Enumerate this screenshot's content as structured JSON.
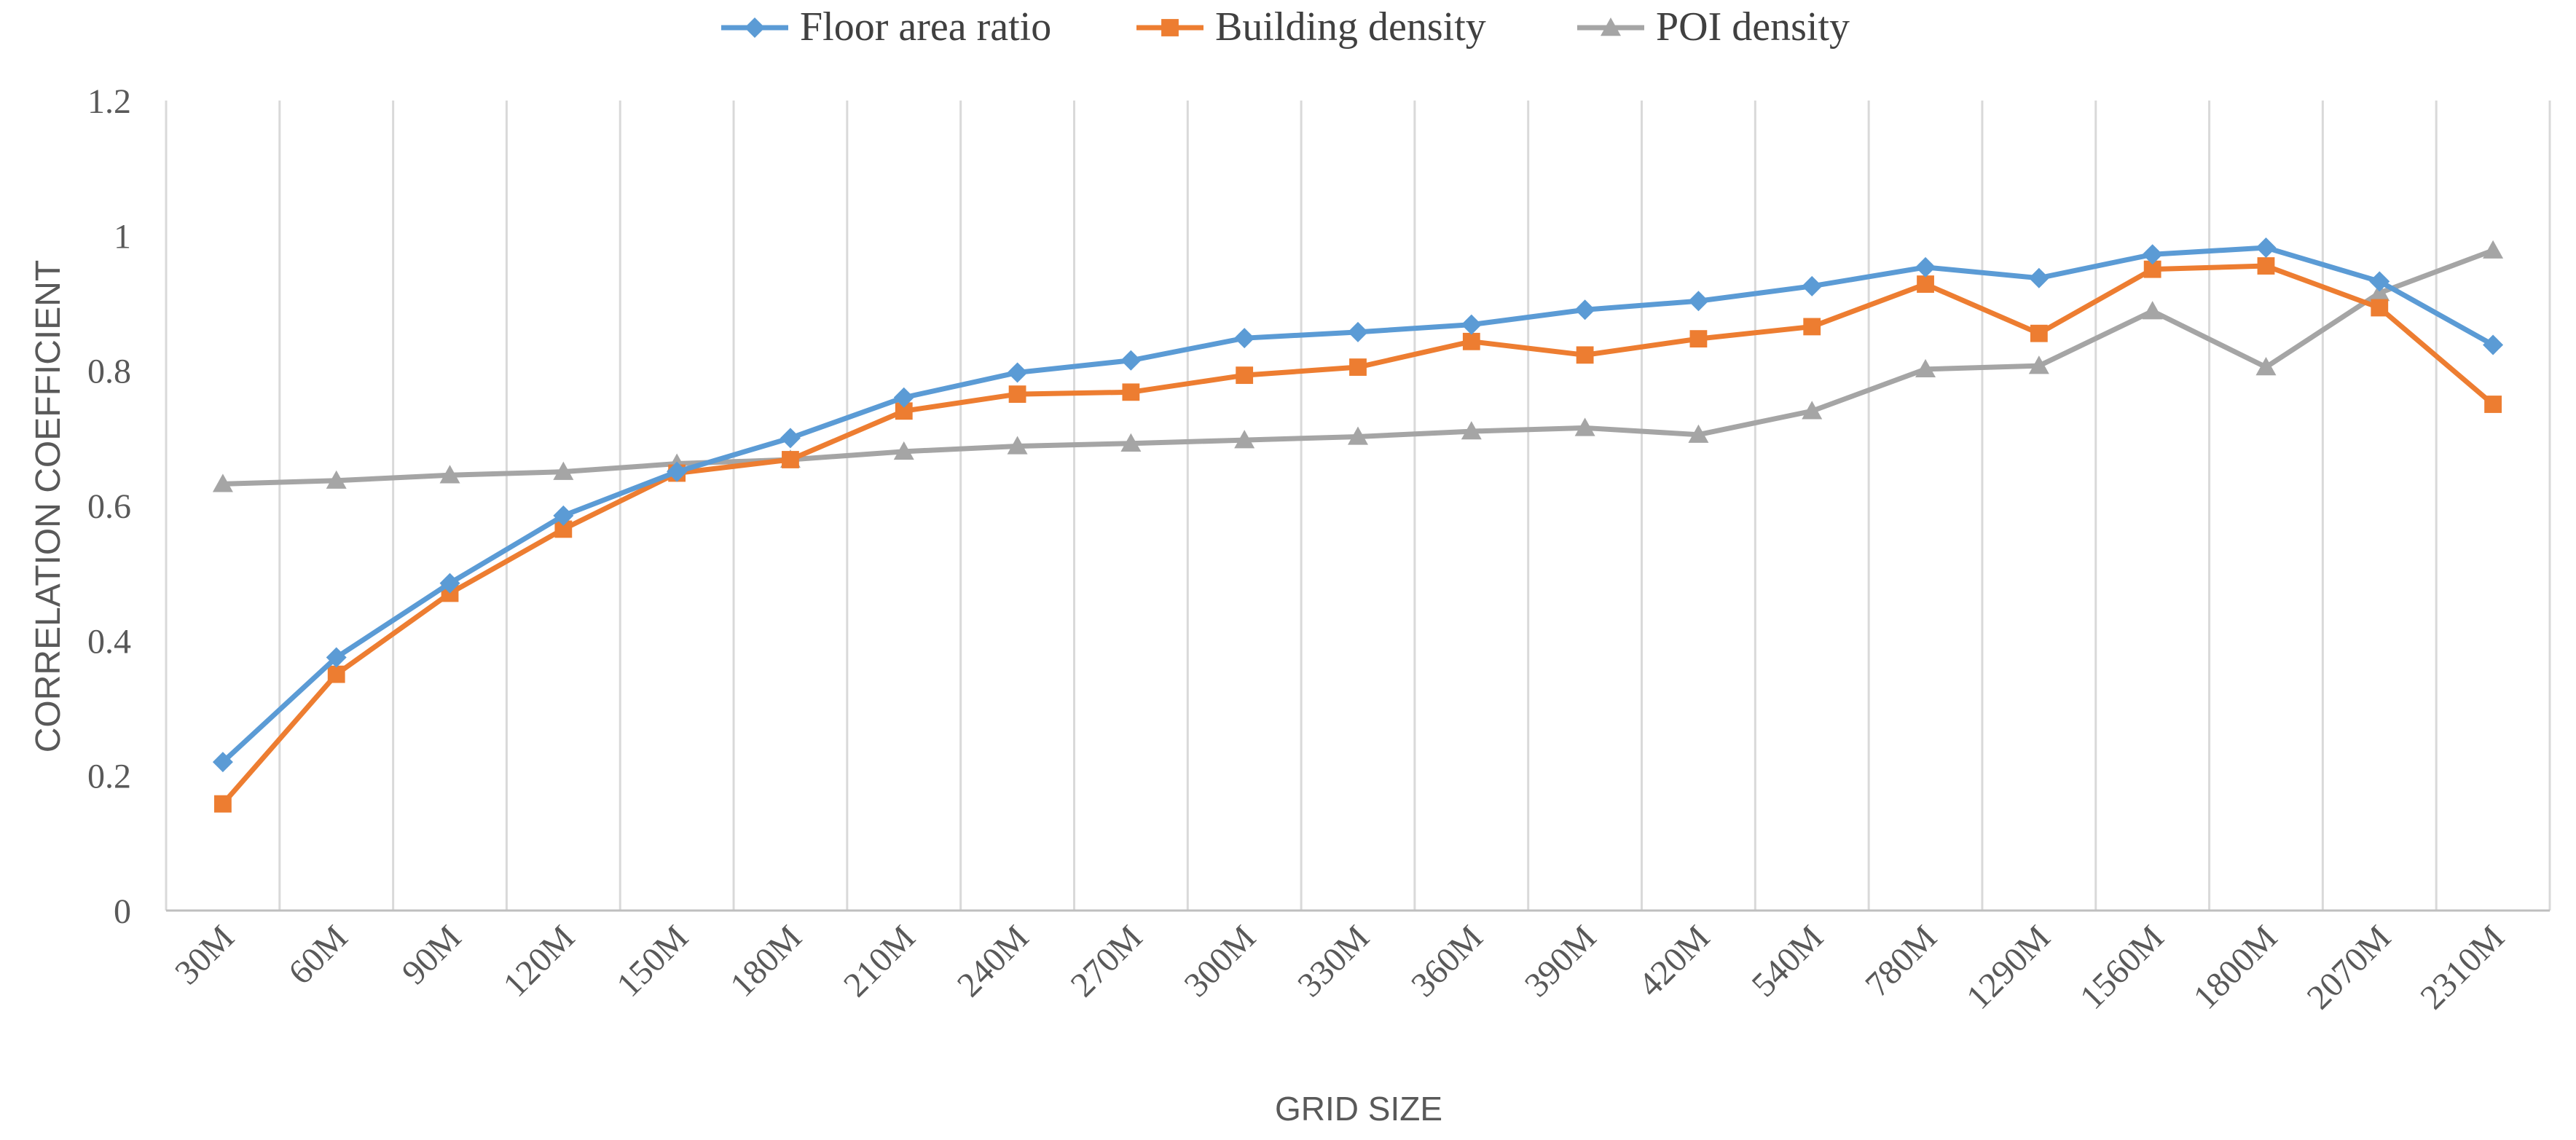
{
  "chart_data": {
    "type": "line",
    "title": "",
    "xlabel": "GRID SIZE",
    "ylabel": "CORRELATION COEFFICIENT",
    "ylim": [
      0,
      1.2
    ],
    "yticks": [
      "0",
      "0.2",
      "0.4",
      "0.6",
      "0.8",
      "1",
      "1.2"
    ],
    "categories": [
      "30M",
      "60M",
      "90M",
      "120M",
      "150M",
      "180M",
      "210M",
      "240M",
      "270M",
      "300M",
      "330M",
      "360M",
      "390M",
      "420M",
      "540M",
      "780M",
      "1290M",
      "1560M",
      "1800M",
      "2070M",
      "2310M"
    ],
    "grid": "vertical",
    "legend_position": "top",
    "series": [
      {
        "name": "Floor area ratio",
        "color": "#5B9BD5",
        "marker": "diamond",
        "values": [
          0.22,
          0.375,
          0.485,
          0.585,
          0.65,
          0.7,
          0.76,
          0.797,
          0.815,
          0.848,
          0.857,
          0.868,
          0.89,
          0.903,
          0.925,
          0.953,
          0.937,
          0.972,
          0.982,
          0.932,
          0.838
        ]
      },
      {
        "name": "Building density",
        "color": "#ED7D31",
        "marker": "square",
        "values": [
          0.158,
          0.35,
          0.47,
          0.565,
          0.648,
          0.668,
          0.74,
          0.765,
          0.768,
          0.793,
          0.805,
          0.843,
          0.823,
          0.847,
          0.865,
          0.928,
          0.855,
          0.95,
          0.955,
          0.893,
          0.75
        ]
      },
      {
        "name": "POI density",
        "color": "#A5A5A5",
        "marker": "triangle",
        "values": [
          0.632,
          0.637,
          0.645,
          0.65,
          0.662,
          0.668,
          0.68,
          0.688,
          0.692,
          0.697,
          0.702,
          0.71,
          0.715,
          0.705,
          0.74,
          0.802,
          0.807,
          0.888,
          0.805,
          0.915,
          0.978
        ]
      }
    ]
  }
}
